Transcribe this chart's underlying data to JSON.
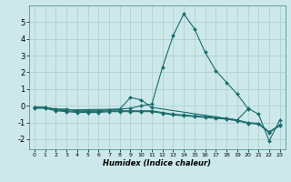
{
  "xlabel": "Humidex (Indice chaleur)",
  "background_color": "#cce8ea",
  "grid_color": "#aacccc",
  "line_color": "#1a6b6b",
  "xlim": [
    -0.5,
    23.5
  ],
  "ylim": [
    -2.6,
    6.0
  ],
  "xticks": [
    0,
    1,
    2,
    3,
    4,
    5,
    6,
    7,
    8,
    9,
    10,
    11,
    12,
    13,
    14,
    15,
    16,
    17,
    18,
    19,
    20,
    21,
    22,
    23
  ],
  "yticks": [
    -2,
    -1,
    0,
    1,
    2,
    3,
    4,
    5
  ],
  "series": [
    {
      "x": [
        0,
        1,
        2,
        3,
        4,
        5,
        6,
        7,
        8,
        9,
        10,
        11,
        12,
        13,
        14,
        15,
        16,
        17,
        18,
        19,
        20,
        21,
        22,
        23
      ],
      "y": [
        -0.1,
        -0.1,
        -0.2,
        -0.2,
        -0.3,
        -0.3,
        -0.3,
        -0.25,
        -0.2,
        -0.15,
        0.0,
        0.1,
        2.3,
        4.2,
        5.5,
        4.6,
        3.2,
        2.1,
        1.4,
        0.7,
        -0.15,
        -0.5,
        -2.1,
        -0.85
      ]
    },
    {
      "x": [
        0,
        1,
        2,
        3,
        4,
        5,
        6,
        7,
        8,
        9,
        10,
        11,
        12,
        13,
        14,
        15,
        16,
        17,
        18,
        19,
        20,
        21,
        22,
        23
      ],
      "y": [
        -0.1,
        -0.1,
        -0.25,
        -0.3,
        -0.35,
        -0.35,
        -0.35,
        -0.3,
        -0.3,
        -0.3,
        -0.3,
        -0.3,
        -0.4,
        -0.5,
        -0.55,
        -0.6,
        -0.65,
        -0.7,
        -0.75,
        -0.85,
        -1.0,
        -1.05,
        -1.55,
        -1.15
      ]
    },
    {
      "x": [
        0,
        1,
        2,
        3,
        4,
        5,
        6,
        7,
        8,
        9,
        10,
        11,
        12,
        13,
        14,
        15,
        16,
        17,
        18,
        19,
        20,
        21,
        22,
        23
      ],
      "y": [
        -0.15,
        -0.15,
        -0.3,
        -0.35,
        -0.4,
        -0.4,
        -0.4,
        -0.35,
        -0.35,
        -0.35,
        -0.35,
        -0.35,
        -0.45,
        -0.55,
        -0.6,
        -0.65,
        -0.7,
        -0.75,
        -0.8,
        -0.9,
        -1.05,
        -1.1,
        -1.6,
        -1.2
      ]
    },
    {
      "x": [
        0,
        1,
        2,
        3,
        8,
        9,
        10,
        11,
        19,
        20
      ],
      "y": [
        -0.1,
        -0.1,
        -0.2,
        -0.25,
        -0.2,
        0.5,
        0.35,
        -0.1,
        -0.85,
        -0.2
      ]
    }
  ]
}
